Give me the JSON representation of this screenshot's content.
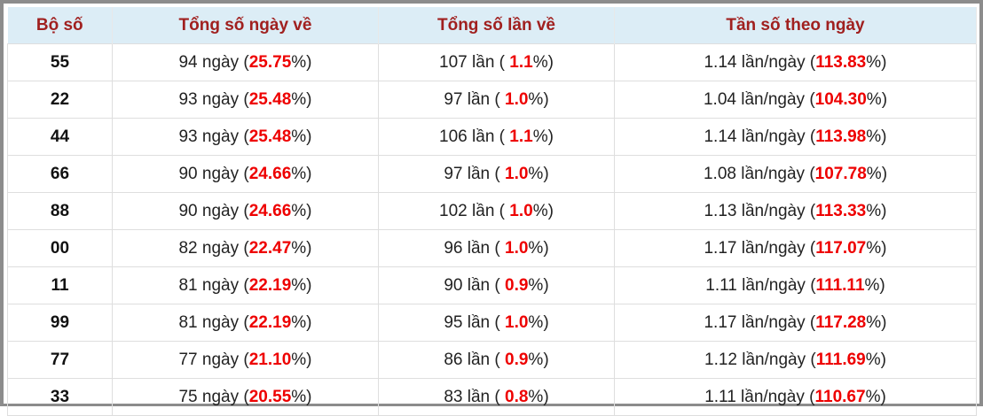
{
  "table": {
    "header": [
      "Bộ số",
      "Tổng số ngày về",
      "Tổng số lần về",
      "Tần số theo ngày"
    ],
    "rows": [
      [
        "55",
        [
          "94 ngày (",
          "25.75",
          "%)"
        ],
        [
          "107 lần ( ",
          "1.1",
          "%)"
        ],
        [
          "1.14 lần/ngày (",
          "113.83",
          "%)"
        ]
      ],
      [
        "22",
        [
          "93 ngày (",
          "25.48",
          "%)"
        ],
        [
          "97 lần ( ",
          "1.0",
          "%)"
        ],
        [
          "1.04 lần/ngày (",
          "104.30",
          "%)"
        ]
      ],
      [
        "44",
        [
          "93 ngày (",
          "25.48",
          "%)"
        ],
        [
          "106 lần ( ",
          "1.1",
          "%)"
        ],
        [
          "1.14 lần/ngày (",
          "113.98",
          "%)"
        ]
      ],
      [
        "66",
        [
          "90 ngày (",
          "24.66",
          "%)"
        ],
        [
          "97 lần ( ",
          "1.0",
          "%)"
        ],
        [
          "1.08 lần/ngày (",
          "107.78",
          "%)"
        ]
      ],
      [
        "88",
        [
          "90 ngày (",
          "24.66",
          "%)"
        ],
        [
          "102 lần ( ",
          "1.0",
          "%)"
        ],
        [
          "1.13 lần/ngày (",
          "113.33",
          "%)"
        ]
      ],
      [
        "00",
        [
          "82 ngày (",
          "22.47",
          "%)"
        ],
        [
          "96 lần ( ",
          "1.0",
          "%)"
        ],
        [
          "1.17 lần/ngày (",
          "117.07",
          "%)"
        ]
      ],
      [
        "11",
        [
          "81 ngày (",
          "22.19",
          "%)"
        ],
        [
          "90 lần ( ",
          "0.9",
          "%)"
        ],
        [
          "1.11 lần/ngày (",
          "111.11",
          "%)"
        ]
      ],
      [
        "99",
        [
          "81 ngày (",
          "22.19",
          "%)"
        ],
        [
          "95 lần ( ",
          "1.0",
          "%)"
        ],
        [
          "1.17 lần/ngày (",
          "117.28",
          "%)"
        ]
      ],
      [
        "77",
        [
          "77 ngày (",
          "21.10",
          "%)"
        ],
        [
          "86 lần ( ",
          "0.9",
          "%)"
        ],
        [
          "1.12 lần/ngày (",
          "111.69",
          "%)"
        ]
      ],
      [
        "33",
        [
          "75 ngày (",
          "20.55",
          "%)"
        ],
        [
          "83 lần ( ",
          "0.8",
          "%)"
        ],
        [
          "1.11 lần/ngày (",
          "110.67",
          "%)"
        ]
      ]
    ]
  }
}
